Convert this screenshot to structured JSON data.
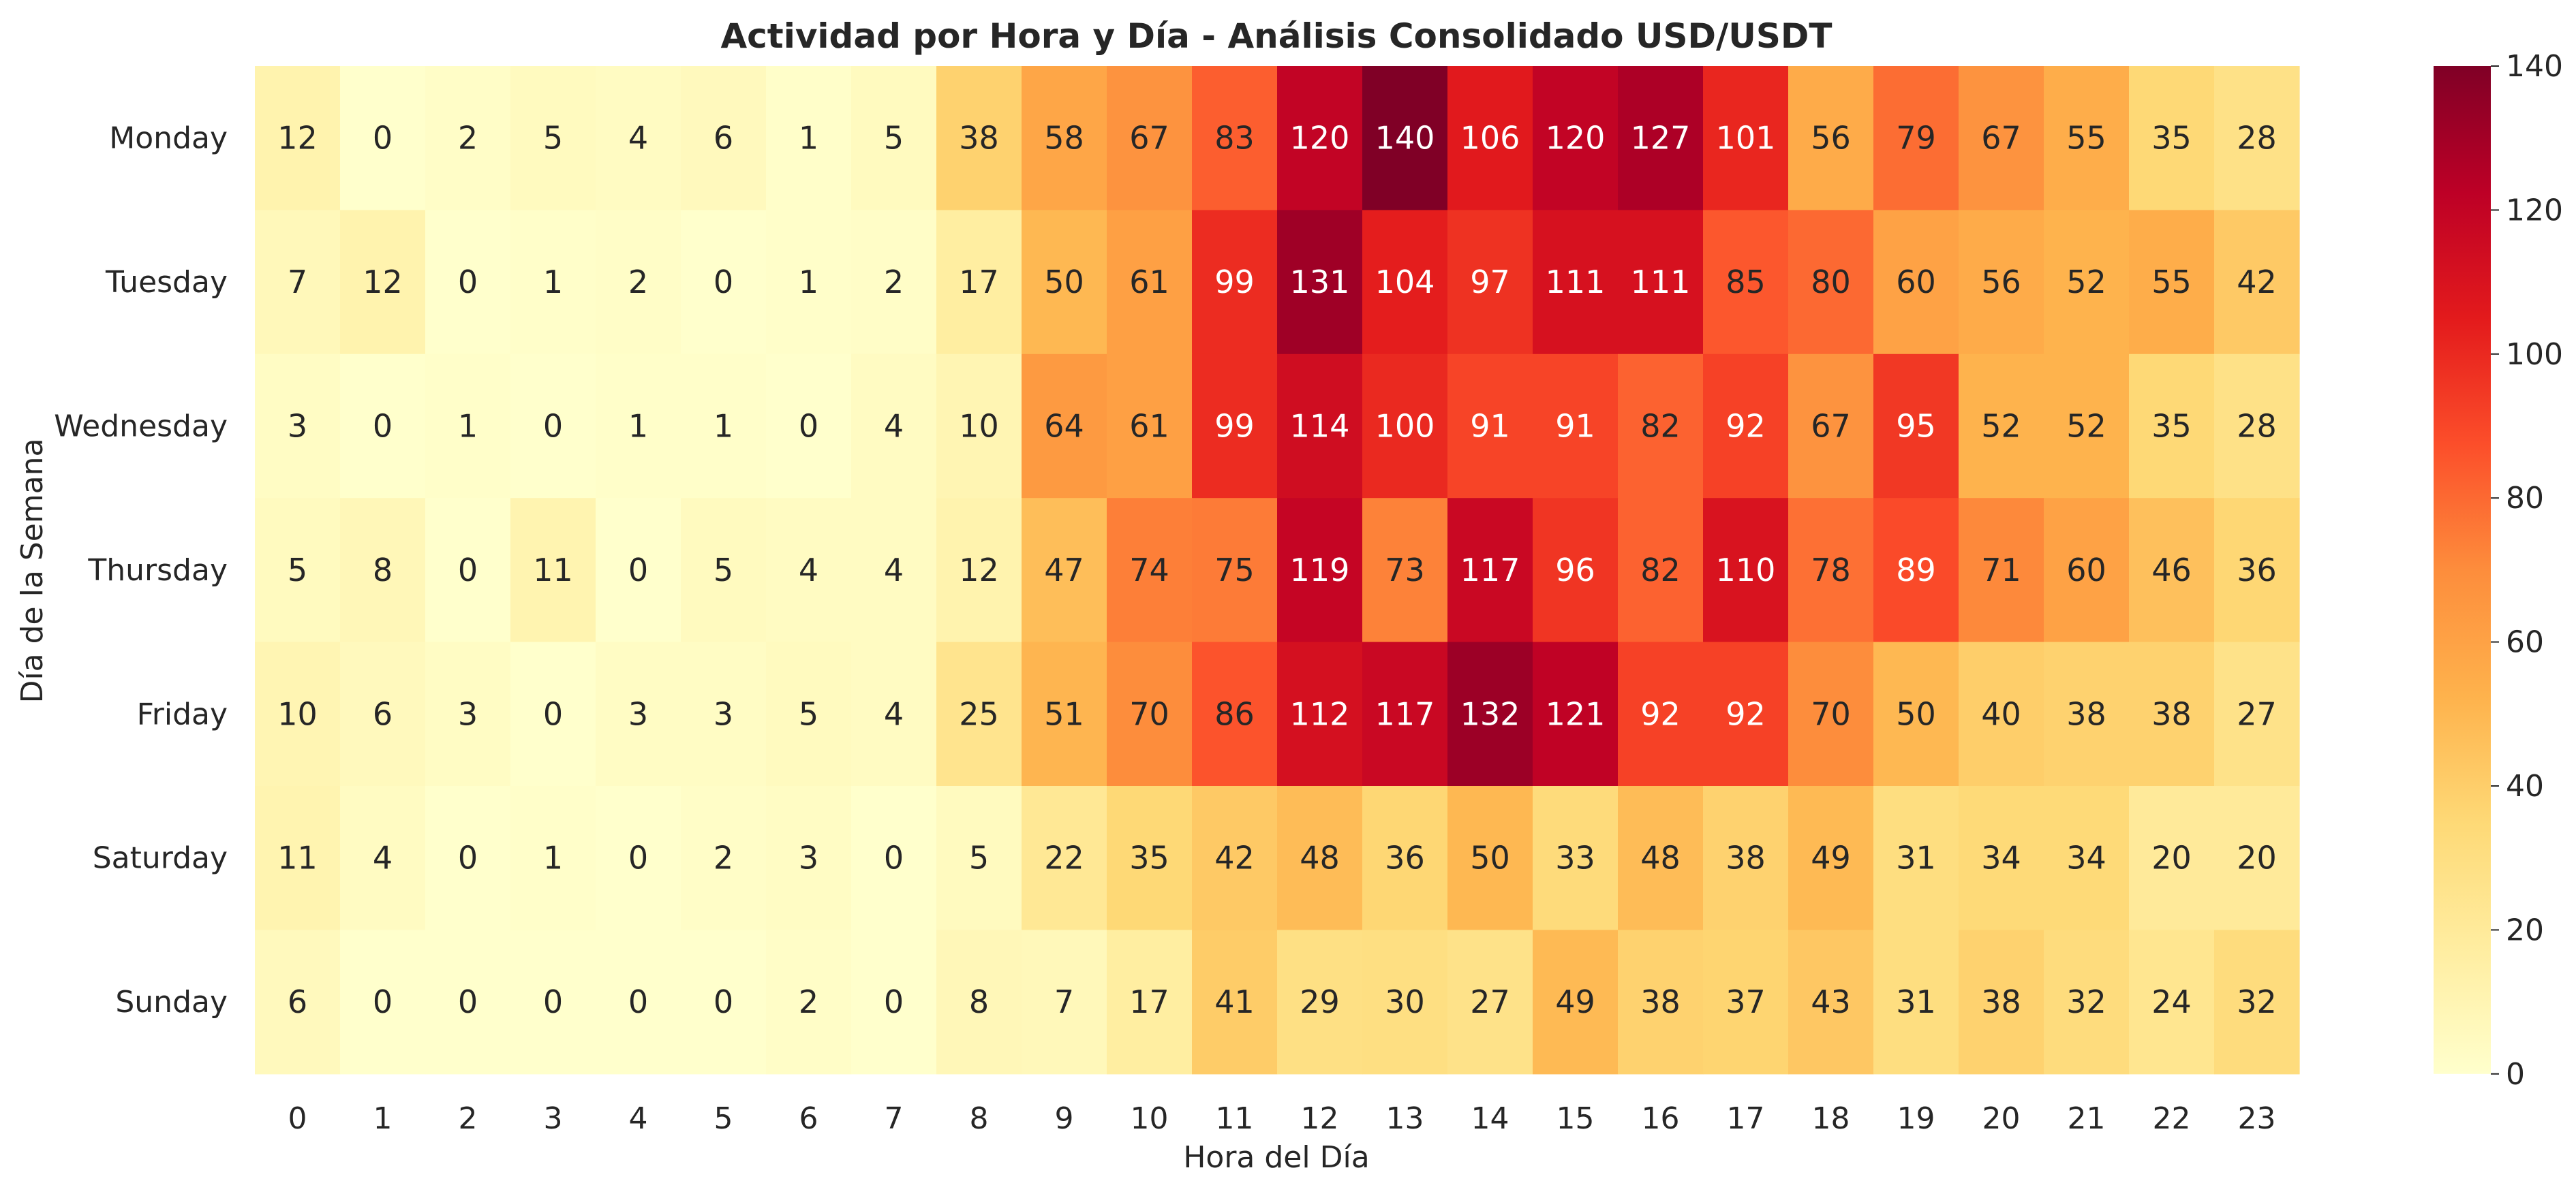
{
  "chart_data": {
    "type": "heatmap",
    "title": "Actividad por Hora y Día - Análisis Consolidado USD/USDT",
    "xlabel": "Hora del Día",
    "ylabel": "Día de la Semana",
    "x_categories": [
      "0",
      "1",
      "2",
      "3",
      "4",
      "5",
      "6",
      "7",
      "8",
      "9",
      "10",
      "11",
      "12",
      "13",
      "14",
      "15",
      "16",
      "17",
      "18",
      "19",
      "20",
      "21",
      "22",
      "23"
    ],
    "y_categories": [
      "Monday",
      "Tuesday",
      "Wednesday",
      "Thursday",
      "Friday",
      "Saturday",
      "Sunday"
    ],
    "values": [
      [
        12,
        0,
        2,
        5,
        4,
        6,
        1,
        5,
        38,
        58,
        67,
        83,
        120,
        140,
        106,
        120,
        127,
        101,
        56,
        79,
        67,
        55,
        35,
        28
      ],
      [
        7,
        12,
        0,
        1,
        2,
        0,
        1,
        2,
        17,
        50,
        61,
        99,
        131,
        104,
        97,
        111,
        111,
        85,
        80,
        60,
        56,
        52,
        55,
        42
      ],
      [
        3,
        0,
        1,
        0,
        1,
        1,
        0,
        4,
        10,
        64,
        61,
        99,
        114,
        100,
        91,
        91,
        82,
        92,
        67,
        95,
        52,
        52,
        35,
        28
      ],
      [
        5,
        8,
        0,
        11,
        0,
        5,
        4,
        4,
        12,
        47,
        74,
        75,
        119,
        73,
        117,
        96,
        82,
        110,
        78,
        89,
        71,
        60,
        46,
        36
      ],
      [
        10,
        6,
        3,
        0,
        3,
        3,
        5,
        4,
        25,
        51,
        70,
        86,
        112,
        117,
        132,
        121,
        92,
        92,
        70,
        50,
        40,
        38,
        38,
        27
      ],
      [
        11,
        4,
        0,
        1,
        0,
        2,
        3,
        0,
        5,
        22,
        35,
        42,
        48,
        36,
        50,
        33,
        48,
        38,
        49,
        31,
        34,
        34,
        20,
        20
      ],
      [
        6,
        0,
        0,
        0,
        0,
        0,
        2,
        0,
        8,
        7,
        17,
        41,
        29,
        30,
        27,
        49,
        38,
        37,
        43,
        31,
        38,
        32,
        24,
        32
      ]
    ],
    "colorbar": {
      "range": [
        0,
        140
      ],
      "ticks": [
        "0",
        "20",
        "40",
        "60",
        "80",
        "100",
        "120",
        "140"
      ]
    },
    "colormap": "YlOrRd",
    "annotations": true,
    "grid": false
  }
}
